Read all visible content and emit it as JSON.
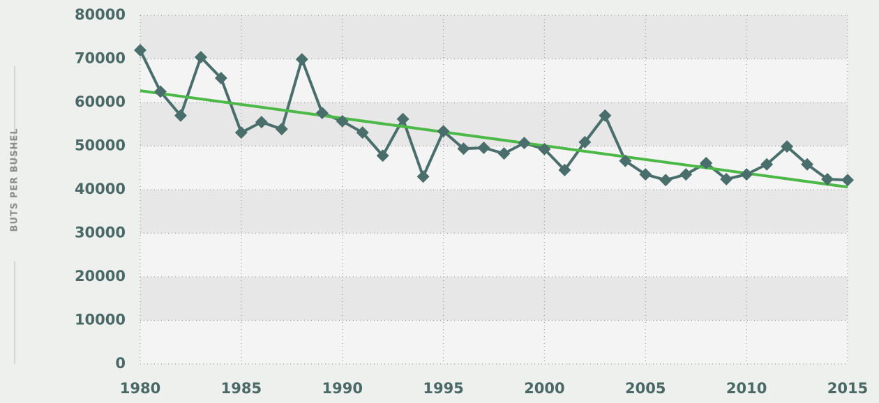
{
  "chart_data": {
    "type": "line",
    "y_axis_label": "BUTS PER BUSHEL",
    "x": [
      1980,
      1981,
      1982,
      1983,
      1984,
      1985,
      1986,
      1987,
      1988,
      1989,
      1990,
      1991,
      1992,
      1993,
      1994,
      1995,
      1996,
      1997,
      1998,
      1999,
      2000,
      2001,
      2002,
      2003,
      2004,
      2005,
      2006,
      2007,
      2008,
      2009,
      2010,
      2011,
      2012,
      2013,
      2014,
      2015
    ],
    "series": [
      {
        "color": "#4a6e6c",
        "values": [
          72000,
          62500,
          57000,
          70400,
          65600,
          53100,
          55500,
          53900,
          69900,
          57600,
          55700,
          53100,
          47800,
          56200,
          43000,
          53400,
          49400,
          49600,
          48300,
          50700,
          49300,
          44500,
          50900,
          57000,
          46600,
          43500,
          42200,
          43500,
          46100,
          42400,
          43500,
          45800,
          49900,
          45800,
          42400,
          42200
        ]
      }
    ],
    "trend_line": {
      "color": "#4cb848",
      "x": [
        1980,
        2015
      ],
      "values": [
        62700,
        40600
      ]
    },
    "xlim": [
      1980,
      2015
    ],
    "xticks": [
      1980,
      1985,
      1990,
      1995,
      2000,
      2005,
      2010,
      2015
    ],
    "ylim": [
      0,
      80000
    ],
    "yticks": [
      0,
      10000,
      20000,
      30000,
      40000,
      50000,
      60000,
      70000,
      80000
    ],
    "grid": true
  }
}
